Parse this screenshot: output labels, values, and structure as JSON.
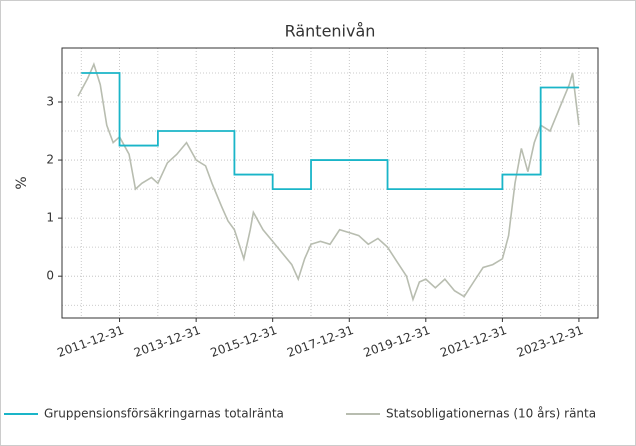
{
  "chart_data": {
    "type": "line",
    "title": "Räntenivån",
    "y_label": "%",
    "xlim": [
      "2010-06-30",
      "2024-06-30"
    ],
    "ylim": [
      -0.72,
      3.93
    ],
    "xticks": [
      "2011-12-31",
      "2013-12-31",
      "2015-12-31",
      "2017-12-31",
      "2019-12-31",
      "2021-12-31",
      "2023-12-31"
    ],
    "yticks": [
      0,
      1,
      2,
      3
    ],
    "grid": true,
    "legend": "bottom",
    "series": [
      {
        "name": "Gruppensionsförsäkringarnas totalränta",
        "color": "#1ab5c8",
        "step": true,
        "x": [
          "2010-12-31",
          "2011-12-31",
          "2012-12-31",
          "2014-12-31",
          "2015-12-31",
          "2016-12-31",
          "2018-12-31",
          "2021-12-31",
          "2022-12-31",
          "2023-12-31"
        ],
        "values": [
          3.5,
          2.25,
          2.5,
          1.75,
          1.5,
          2.0,
          1.5,
          1.75,
          3.25,
          3.25
        ]
      },
      {
        "name": "Statsobligationernas (10 års) ränta",
        "color": "#b8bdb0",
        "step": false,
        "x": [
          "2010-11-30",
          "2011-02-28",
          "2011-04-30",
          "2011-06-30",
          "2011-08-31",
          "2011-10-31",
          "2011-12-31",
          "2012-03-31",
          "2012-05-31",
          "2012-07-31",
          "2012-10-31",
          "2012-12-31",
          "2013-03-31",
          "2013-06-30",
          "2013-09-30",
          "2013-12-31",
          "2014-03-31",
          "2014-05-31",
          "2014-08-31",
          "2014-10-31",
          "2014-12-31",
          "2015-03-31",
          "2015-05-31",
          "2015-06-30",
          "2015-09-30",
          "2015-12-31",
          "2016-03-31",
          "2016-06-30",
          "2016-08-31",
          "2016-10-31",
          "2016-12-31",
          "2017-03-31",
          "2017-06-30",
          "2017-09-30",
          "2017-12-31",
          "2018-03-31",
          "2018-06-30",
          "2018-09-30",
          "2018-12-31",
          "2019-03-31",
          "2019-06-30",
          "2019-08-31",
          "2019-10-31",
          "2019-12-31",
          "2020-03-31",
          "2020-06-30",
          "2020-09-30",
          "2020-12-31",
          "2021-03-31",
          "2021-06-30",
          "2021-09-30",
          "2021-12-31",
          "2022-02-28",
          "2022-04-30",
          "2022-06-30",
          "2022-08-31",
          "2022-10-31",
          "2022-12-31",
          "2023-03-31",
          "2023-06-30",
          "2023-09-30",
          "2023-10-31",
          "2023-12-31"
        ],
        "values": [
          3.1,
          3.4,
          3.65,
          3.3,
          2.6,
          2.3,
          2.4,
          2.1,
          1.5,
          1.6,
          1.7,
          1.6,
          1.95,
          2.1,
          2.3,
          2.0,
          1.9,
          1.6,
          1.2,
          0.95,
          0.8,
          0.3,
          0.8,
          1.1,
          0.8,
          0.6,
          0.4,
          0.2,
          -0.05,
          0.3,
          0.55,
          0.6,
          0.55,
          0.8,
          0.75,
          0.7,
          0.55,
          0.65,
          0.5,
          0.25,
          0.0,
          -0.4,
          -0.1,
          -0.05,
          -0.2,
          -0.05,
          -0.25,
          -0.35,
          -0.1,
          0.15,
          0.2,
          0.3,
          0.7,
          1.6,
          2.2,
          1.8,
          2.3,
          2.6,
          2.5,
          2.9,
          3.3,
          3.5,
          2.6
        ]
      }
    ]
  }
}
